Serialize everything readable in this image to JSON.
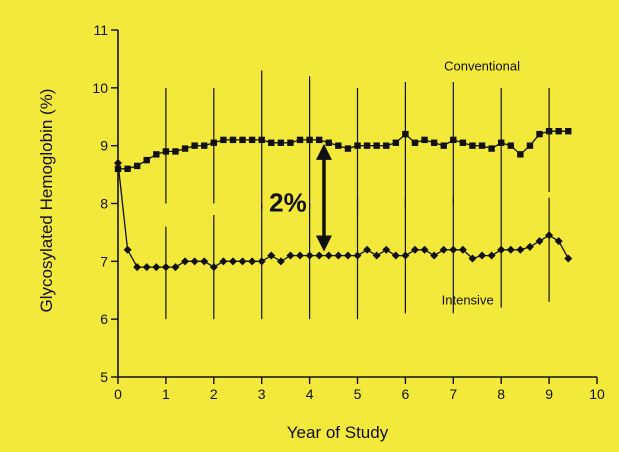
{
  "chart_data": {
    "type": "line",
    "title": "",
    "xlabel": "Year of Study",
    "ylabel": "Glycosylated Hemoglobin (%)",
    "xlim": [
      0,
      10
    ],
    "ylim": [
      5,
      11
    ],
    "x_ticks": [
      "0",
      "1",
      "2",
      "3",
      "4",
      "5",
      "6",
      "7",
      "8",
      "9",
      "10"
    ],
    "y_ticks": [
      "5",
      "6",
      "7",
      "8",
      "9",
      "10",
      "11"
    ],
    "grid": false,
    "legend": "none",
    "annotation": "2%",
    "annotation_span": [
      7.1,
      9.1
    ],
    "background_color": "#f3e93a",
    "line_color": "#111111",
    "series": [
      {
        "name": "Conventional",
        "marker": "square",
        "x": [
          0,
          0.2,
          0.4,
          0.6,
          0.8,
          1.0,
          1.2,
          1.4,
          1.6,
          1.8,
          2.0,
          2.2,
          2.4,
          2.6,
          2.8,
          3.0,
          3.2,
          3.4,
          3.6,
          3.8,
          4.0,
          4.2,
          4.4,
          4.6,
          4.8,
          5.0,
          5.2,
          5.4,
          5.6,
          5.8,
          6.0,
          6.2,
          6.4,
          6.6,
          6.8,
          7.0,
          7.2,
          7.4,
          7.6,
          7.8,
          8.0,
          8.2,
          8.4,
          8.6,
          8.8,
          9.0,
          9.2,
          9.4
        ],
        "values": [
          8.6,
          8.6,
          8.65,
          8.75,
          8.85,
          8.9,
          8.9,
          8.95,
          9.0,
          9.0,
          9.05,
          9.1,
          9.1,
          9.1,
          9.1,
          9.1,
          9.05,
          9.05,
          9.05,
          9.1,
          9.1,
          9.1,
          9.05,
          9.0,
          8.95,
          9.0,
          9.0,
          9.0,
          9.0,
          9.05,
          9.2,
          9.05,
          9.1,
          9.05,
          9.0,
          9.1,
          9.05,
          9.0,
          9.0,
          8.95,
          9.05,
          9.0,
          8.85,
          9.0,
          9.2,
          9.25,
          9.25,
          9.25
        ],
        "error_bars": {
          "x": [
            1,
            2,
            3,
            4,
            5,
            6,
            7,
            8,
            9
          ],
          "lower": [
            8.0,
            8.0,
            7.9,
            7.9,
            7.8,
            7.9,
            8.0,
            8.0,
            8.2
          ],
          "upper": [
            10.0,
            10.0,
            10.3,
            10.2,
            10.0,
            10.1,
            10.1,
            10.0,
            10.0
          ]
        }
      },
      {
        "name": "Intensive",
        "marker": "diamond",
        "x": [
          0,
          0.2,
          0.4,
          0.6,
          0.8,
          1.0,
          1.2,
          1.4,
          1.6,
          1.8,
          2.0,
          2.2,
          2.4,
          2.6,
          2.8,
          3.0,
          3.2,
          3.4,
          3.6,
          3.8,
          4.0,
          4.2,
          4.4,
          4.6,
          4.8,
          5.0,
          5.2,
          5.4,
          5.6,
          5.8,
          6.0,
          6.2,
          6.4,
          6.6,
          6.8,
          7.0,
          7.2,
          7.4,
          7.6,
          7.8,
          8.0,
          8.2,
          8.4,
          8.6,
          8.8,
          9.0,
          9.2,
          9.4
        ],
        "values": [
          8.7,
          7.2,
          6.9,
          6.9,
          6.9,
          6.9,
          6.9,
          7.0,
          7.0,
          7.0,
          6.9,
          7.0,
          7.0,
          7.0,
          7.0,
          7.0,
          7.1,
          7.0,
          7.1,
          7.1,
          7.1,
          7.1,
          7.1,
          7.1,
          7.1,
          7.1,
          7.2,
          7.1,
          7.2,
          7.1,
          7.1,
          7.2,
          7.2,
          7.1,
          7.2,
          7.2,
          7.2,
          7.05,
          7.1,
          7.1,
          7.2,
          7.2,
          7.2,
          7.25,
          7.35,
          7.45,
          7.35,
          7.05
        ],
        "error_bars": {
          "x": [
            1,
            2,
            3,
            4,
            5,
            6,
            7,
            8,
            9
          ],
          "lower": [
            6.0,
            6.0,
            6.0,
            6.0,
            6.0,
            6.1,
            6.1,
            6.2,
            6.3
          ],
          "upper": [
            7.6,
            7.8,
            8.0,
            8.0,
            8.1,
            8.1,
            8.1,
            8.0,
            8.1
          ]
        }
      }
    ]
  }
}
